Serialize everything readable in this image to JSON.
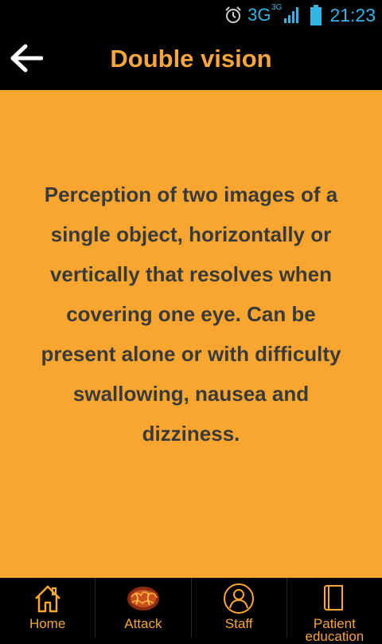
{
  "status_bar": {
    "network": "3G",
    "network_sup": "3G",
    "time": "21:23",
    "accent_color": "#33b5e5"
  },
  "header": {
    "title": "Double vision",
    "back_icon": "arrow-left-icon"
  },
  "content": {
    "description": "Perception of two images of a single object, horizontally or vertically that resolves when covering one eye. Can be present alone or with difficulty swallowing, nausea and dizziness."
  },
  "nav": {
    "items": [
      {
        "label": "Home",
        "icon": "home-icon",
        "active": true
      },
      {
        "label": "Attack",
        "icon": "brain-icon",
        "active": false
      },
      {
        "label": "Staff",
        "icon": "person-icon",
        "active": false
      },
      {
        "label": "Patient education",
        "icon": "book-icon",
        "active": false
      }
    ]
  },
  "colors": {
    "accent": "#f8a630",
    "background": "#000000",
    "text": "#3a3a3a"
  }
}
